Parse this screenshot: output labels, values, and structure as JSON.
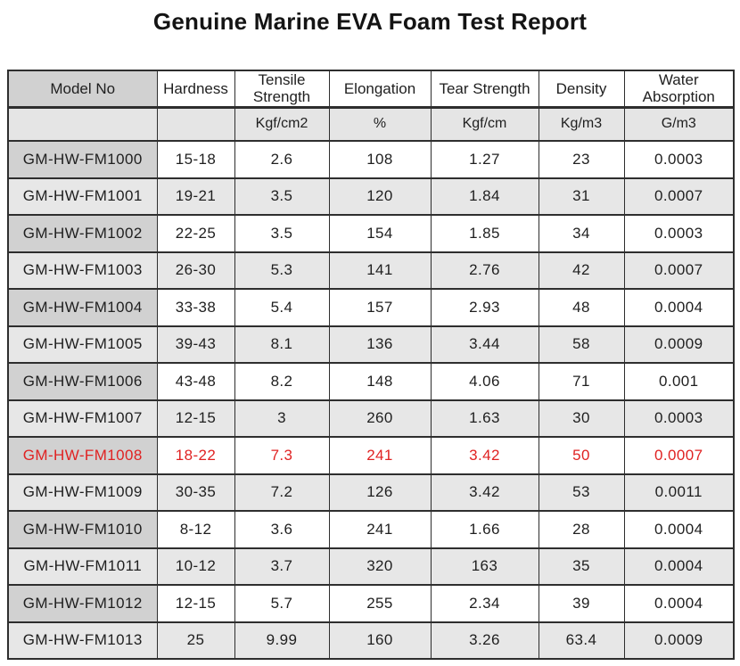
{
  "title": "Genuine Marine EVA Foam Test Report",
  "colors": {
    "highlight_red": "#e02222",
    "model_column_dark_gray": "#d1d1d1",
    "alternate_row_gray": "#e7e7e7",
    "grid_border": "#2e2e2e",
    "text": "#1f1f1f"
  },
  "table": {
    "columns": [
      {
        "id": "model",
        "label": "Model No",
        "unit": ""
      },
      {
        "id": "hardness",
        "label": "Hardness",
        "unit": ""
      },
      {
        "id": "tensile",
        "label": "Tensile Strength",
        "unit": "Kgf/cm2"
      },
      {
        "id": "elongation",
        "label": "Elongation",
        "unit": "%"
      },
      {
        "id": "tear",
        "label": "Tear Strength",
        "unit": "Kgf/cm"
      },
      {
        "id": "density",
        "label": "Density",
        "unit": "Kg/m3"
      },
      {
        "id": "water",
        "label": "Water Absorption",
        "unit": "G/m3"
      }
    ],
    "rows": [
      {
        "values": [
          "GM-HW-FM1000",
          "15-18",
          "2.6",
          "108",
          "1.27",
          "23",
          "0.0003"
        ],
        "highlight": false
      },
      {
        "values": [
          "GM-HW-FM1001",
          "19-21",
          "3.5",
          "120",
          "1.84",
          "31",
          "0.0007"
        ],
        "highlight": false
      },
      {
        "values": [
          "GM-HW-FM1002",
          "22-25",
          "3.5",
          "154",
          "1.85",
          "34",
          "0.0003"
        ],
        "highlight": false
      },
      {
        "values": [
          "GM-HW-FM1003",
          "26-30",
          "5.3",
          "141",
          "2.76",
          "42",
          "0.0007"
        ],
        "highlight": false
      },
      {
        "values": [
          "GM-HW-FM1004",
          "33-38",
          "5.4",
          "157",
          "2.93",
          "48",
          "0.0004"
        ],
        "highlight": false
      },
      {
        "values": [
          "GM-HW-FM1005",
          "39-43",
          "8.1",
          "136",
          "3.44",
          "58",
          "0.0009"
        ],
        "highlight": false
      },
      {
        "values": [
          "GM-HW-FM1006",
          "43-48",
          "8.2",
          "148",
          "4.06",
          "71",
          "0.001"
        ],
        "highlight": false
      },
      {
        "values": [
          "GM-HW-FM1007",
          "12-15",
          "3",
          "260",
          "1.63",
          "30",
          "0.0003"
        ],
        "highlight": false
      },
      {
        "values": [
          "GM-HW-FM1008",
          "18-22",
          "7.3",
          "241",
          "3.42",
          "50",
          "0.0007"
        ],
        "highlight": true
      },
      {
        "values": [
          "GM-HW-FM1009",
          "30-35",
          "7.2",
          "126",
          "3.42",
          "53",
          "0.0011"
        ],
        "highlight": false
      },
      {
        "values": [
          "GM-HW-FM1010",
          "8-12",
          "3.6",
          "241",
          "1.66",
          "28",
          "0.0004"
        ],
        "highlight": false
      },
      {
        "values": [
          "GM-HW-FM1011",
          "10-12",
          "3.7",
          "320",
          "163",
          "35",
          "0.0004"
        ],
        "highlight": false
      },
      {
        "values": [
          "GM-HW-FM1012",
          "12-15",
          "5.7",
          "255",
          "2.34",
          "39",
          "0.0004"
        ],
        "highlight": false
      },
      {
        "values": [
          "GM-HW-FM1013",
          "25",
          "9.99",
          "160",
          "3.26",
          "63.4",
          "0.0009"
        ],
        "highlight": false
      }
    ]
  }
}
